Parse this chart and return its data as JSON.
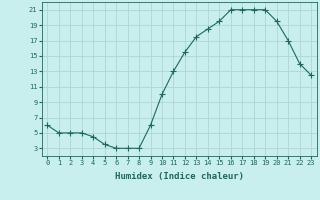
{
  "x": [
    0,
    1,
    2,
    3,
    4,
    5,
    6,
    7,
    8,
    9,
    10,
    11,
    12,
    13,
    14,
    15,
    16,
    17,
    18,
    19,
    20,
    21,
    22,
    23
  ],
  "y": [
    6,
    5,
    5,
    5,
    4.5,
    3.5,
    3,
    3,
    3,
    6,
    10,
    13,
    15.5,
    17.5,
    18.5,
    19.5,
    21,
    21,
    21,
    21,
    19.5,
    17,
    14,
    12.5
  ],
  "line_color": "#1a6b5a",
  "marker": "+",
  "marker_size": 4,
  "bg_color": "#c8eeee",
  "grid_color": "#b0d4d4",
  "xlabel": "Humidex (Indice chaleur)",
  "xlim": [
    -0.5,
    23.5
  ],
  "ylim": [
    2,
    22
  ],
  "yticks": [
    3,
    5,
    7,
    9,
    11,
    13,
    15,
    17,
    19,
    21
  ],
  "xticks": [
    0,
    1,
    2,
    3,
    4,
    5,
    6,
    7,
    8,
    9,
    10,
    11,
    12,
    13,
    14,
    15,
    16,
    17,
    18,
    19,
    20,
    21,
    22,
    23
  ],
  "tick_color": "#1a6b5a",
  "label_fontsize": 6.5,
  "tick_fontsize": 5
}
